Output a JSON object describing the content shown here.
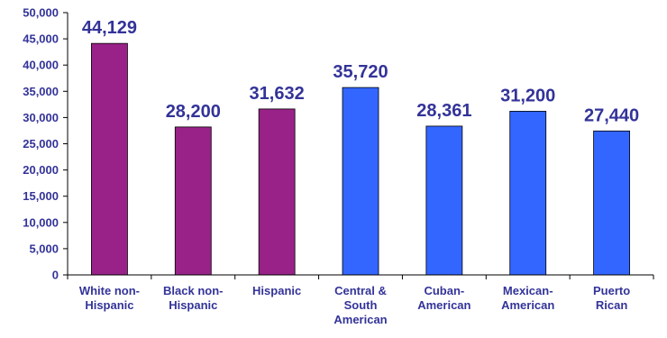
{
  "chart_data": {
    "type": "bar",
    "title": "",
    "xlabel": "",
    "ylabel": "",
    "ylim": [
      0,
      50000
    ],
    "yticks": [
      0,
      5000,
      10000,
      15000,
      20000,
      25000,
      30000,
      35000,
      40000,
      45000,
      50000
    ],
    "ytick_labels": [
      "0",
      "5,000",
      "10,000",
      "15,000",
      "20,000",
      "25,000",
      "30,000",
      "35,000",
      "40,000",
      "45,000",
      "50,000"
    ],
    "grid": false,
    "legend": "none",
    "categories": [
      [
        "White non-",
        "Hispanic"
      ],
      [
        "Black non-",
        "Hispanic"
      ],
      [
        "Hispanic"
      ],
      [
        "Central &",
        "South",
        "American"
      ],
      [
        "Cuban-",
        "American"
      ],
      [
        "Mexican-",
        "American"
      ],
      [
        "Puerto",
        "Rican"
      ]
    ],
    "values": [
      44129,
      28200,
      31632,
      35720,
      28361,
      31200,
      27440
    ],
    "value_labels": [
      "44,129",
      "28,200",
      "31,632",
      "35,720",
      "28,361",
      "31,200",
      "27,440"
    ],
    "bar_colors": [
      "#992288",
      "#992288",
      "#992288",
      "#3366ff",
      "#3366ff",
      "#3366ff",
      "#3366ff"
    ],
    "text_color": "#333399",
    "axis_color": "#000000"
  }
}
